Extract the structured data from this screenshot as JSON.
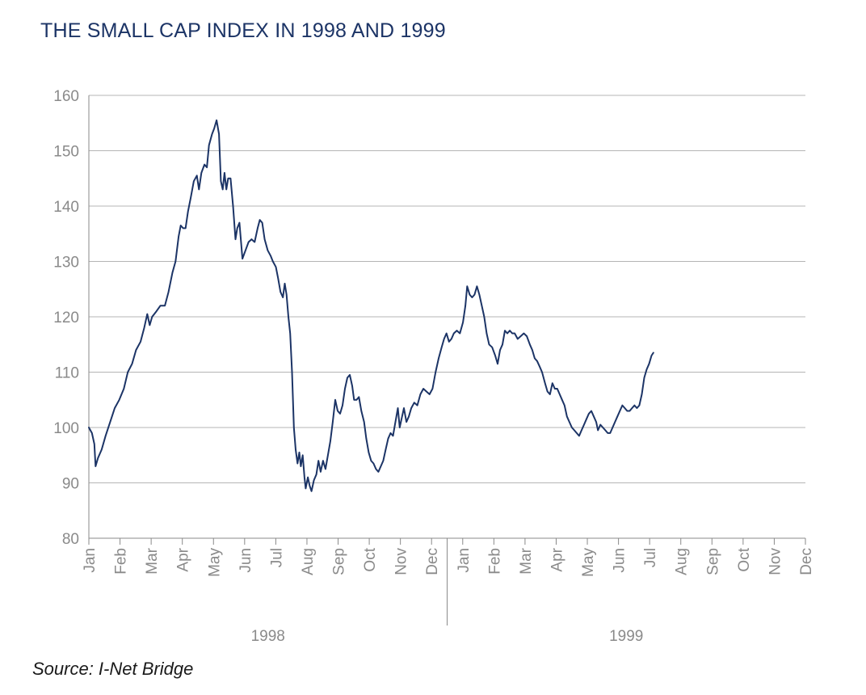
{
  "title": "THE SMALL CAP INDEX IN 1998 AND 1999",
  "source": "Source: I-Net Bridge",
  "colors": {
    "line": "#1c3466",
    "grid": "#b5b5b5",
    "axis": "#8a8a8a",
    "title": "#1c3466"
  },
  "chart_data": {
    "type": "line",
    "title": "THE SMALL CAP INDEX IN 1998 AND 1999",
    "xlabel": "",
    "ylabel": "",
    "ylim": [
      80,
      160
    ],
    "yticks": [
      80,
      90,
      100,
      110,
      120,
      130,
      140,
      150,
      160
    ],
    "grid": true,
    "legend": "none",
    "x_ticks": [
      "Jan",
      "Feb",
      "Mar",
      "Apr",
      "May",
      "Jun",
      "Jul",
      "Aug",
      "Sep",
      "Oct",
      "Nov",
      "Dec",
      "Jan",
      "Feb",
      "Mar",
      "Apr",
      "May",
      "Jun",
      "Jul",
      "Aug",
      "Sep",
      "Oct",
      "Nov",
      "Dec"
    ],
    "year_labels": [
      "1998",
      "1999"
    ],
    "series": [
      {
        "points": [
          [
            0.0,
            100
          ],
          [
            0.1,
            99
          ],
          [
            0.18,
            97
          ],
          [
            0.22,
            93
          ],
          [
            0.3,
            94.5
          ],
          [
            0.42,
            96
          ],
          [
            0.55,
            98.5
          ],
          [
            0.7,
            101
          ],
          [
            0.85,
            103.5
          ],
          [
            1.0,
            105
          ],
          [
            1.15,
            107
          ],
          [
            1.28,
            110
          ],
          [
            1.42,
            111.5
          ],
          [
            1.55,
            114
          ],
          [
            1.7,
            115.5
          ],
          [
            1.82,
            118
          ],
          [
            1.92,
            120.5
          ],
          [
            2.0,
            118.5
          ],
          [
            2.08,
            120
          ],
          [
            2.22,
            121
          ],
          [
            2.35,
            122
          ],
          [
            2.5,
            122
          ],
          [
            2.62,
            124.5
          ],
          [
            2.75,
            128
          ],
          [
            2.85,
            130
          ],
          [
            2.95,
            134.5
          ],
          [
            3.02,
            136.5
          ],
          [
            3.1,
            136
          ],
          [
            3.18,
            136
          ],
          [
            3.26,
            139
          ],
          [
            3.35,
            141.5
          ],
          [
            3.45,
            144.5
          ],
          [
            3.55,
            145.5
          ],
          [
            3.62,
            143
          ],
          [
            3.7,
            146
          ],
          [
            3.8,
            147.5
          ],
          [
            3.88,
            147
          ],
          [
            3.95,
            151
          ],
          [
            4.05,
            153
          ],
          [
            4.12,
            154
          ],
          [
            4.2,
            155.5
          ],
          [
            4.28,
            153
          ],
          [
            4.34,
            144.5
          ],
          [
            4.4,
            143
          ],
          [
            4.46,
            146
          ],
          [
            4.52,
            143
          ],
          [
            4.58,
            145
          ],
          [
            4.66,
            145
          ],
          [
            4.74,
            140
          ],
          [
            4.82,
            134
          ],
          [
            4.88,
            136
          ],
          [
            4.95,
            137
          ],
          [
            5.05,
            130.5
          ],
          [
            5.15,
            132
          ],
          [
            5.25,
            133.5
          ],
          [
            5.35,
            134
          ],
          [
            5.45,
            133.5
          ],
          [
            5.55,
            136
          ],
          [
            5.62,
            137.5
          ],
          [
            5.7,
            137
          ],
          [
            5.78,
            134
          ],
          [
            5.88,
            132
          ],
          [
            5.98,
            131
          ],
          [
            6.05,
            130
          ],
          [
            6.15,
            129
          ],
          [
            6.22,
            127
          ],
          [
            6.3,
            124.5
          ],
          [
            6.38,
            123.5
          ],
          [
            6.44,
            126
          ],
          [
            6.5,
            124
          ],
          [
            6.56,
            120
          ],
          [
            6.62,
            117
          ],
          [
            6.68,
            110
          ],
          [
            6.74,
            100
          ],
          [
            6.8,
            96
          ],
          [
            6.86,
            93.5
          ],
          [
            6.92,
            95.5
          ],
          [
            6.97,
            93
          ],
          [
            7.03,
            95
          ],
          [
            7.09,
            91
          ],
          [
            7.13,
            89
          ],
          [
            7.2,
            91
          ],
          [
            7.26,
            89.5
          ],
          [
            7.32,
            88.5
          ],
          [
            7.4,
            90.5
          ],
          [
            7.48,
            91.5
          ],
          [
            7.55,
            94
          ],
          [
            7.62,
            92
          ],
          [
            7.7,
            94
          ],
          [
            7.78,
            92.5
          ],
          [
            7.86,
            95
          ],
          [
            7.94,
            97.5
          ],
          [
            8.02,
            101
          ],
          [
            8.1,
            105
          ],
          [
            8.18,
            103
          ],
          [
            8.26,
            102.5
          ],
          [
            8.34,
            104
          ],
          [
            8.42,
            107
          ],
          [
            8.5,
            109
          ],
          [
            8.58,
            109.5
          ],
          [
            8.66,
            107.5
          ],
          [
            8.72,
            105
          ],
          [
            8.8,
            105
          ],
          [
            8.88,
            105.5
          ],
          [
            8.96,
            103
          ],
          [
            9.05,
            101
          ],
          [
            9.12,
            98
          ],
          [
            9.2,
            95.5
          ],
          [
            9.28,
            94
          ],
          [
            9.36,
            93.5
          ],
          [
            9.44,
            92.5
          ],
          [
            9.52,
            92
          ],
          [
            9.6,
            93
          ],
          [
            9.68,
            94
          ],
          [
            9.76,
            96
          ],
          [
            9.84,
            98
          ],
          [
            9.92,
            99
          ],
          [
            10.0,
            98.5
          ],
          [
            10.08,
            101
          ],
          [
            10.16,
            103.5
          ],
          [
            10.22,
            100
          ],
          [
            10.28,
            101.5
          ],
          [
            10.36,
            103.5
          ],
          [
            10.44,
            101
          ],
          [
            10.52,
            102
          ],
          [
            10.6,
            103.5
          ],
          [
            10.7,
            104.5
          ],
          [
            10.8,
            104
          ],
          [
            10.9,
            106
          ],
          [
            11.0,
            107
          ],
          [
            11.1,
            106.5
          ],
          [
            11.2,
            106
          ],
          [
            11.3,
            107
          ],
          [
            11.4,
            110
          ],
          [
            11.5,
            112.5
          ],
          [
            11.6,
            114.5
          ],
          [
            11.68,
            116
          ],
          [
            11.76,
            117
          ],
          [
            11.84,
            115.5
          ],
          [
            11.92,
            116
          ],
          [
            12.0,
            117
          ],
          [
            12.1,
            117.5
          ],
          [
            12.2,
            117
          ],
          [
            12.3,
            119
          ],
          [
            12.38,
            122
          ],
          [
            12.44,
            125.5
          ],
          [
            12.52,
            124
          ],
          [
            12.6,
            123.5
          ],
          [
            12.68,
            124
          ],
          [
            12.76,
            125.5
          ],
          [
            12.84,
            124
          ],
          [
            12.92,
            122
          ],
          [
            13.0,
            120
          ],
          [
            13.08,
            117
          ],
          [
            13.16,
            115
          ],
          [
            13.26,
            114.5
          ],
          [
            13.36,
            113
          ],
          [
            13.44,
            111.5
          ],
          [
            13.52,
            114
          ],
          [
            13.6,
            115
          ],
          [
            13.68,
            117.5
          ],
          [
            13.76,
            117
          ],
          [
            13.84,
            117.5
          ],
          [
            13.92,
            117
          ],
          [
            14.0,
            117
          ],
          [
            14.1,
            116
          ],
          [
            14.2,
            116.5
          ],
          [
            14.3,
            117
          ],
          [
            14.4,
            116.5
          ],
          [
            14.5,
            115
          ],
          [
            14.58,
            114
          ],
          [
            14.66,
            112.5
          ],
          [
            14.74,
            112
          ],
          [
            14.82,
            111
          ],
          [
            14.9,
            110
          ],
          [
            15.0,
            108
          ],
          [
            15.08,
            106.5
          ],
          [
            15.16,
            106
          ],
          [
            15.24,
            108
          ],
          [
            15.32,
            107
          ],
          [
            15.4,
            107
          ],
          [
            15.48,
            106
          ],
          [
            15.56,
            105
          ],
          [
            15.64,
            104
          ],
          [
            15.72,
            102
          ],
          [
            15.8,
            101
          ],
          [
            15.88,
            100
          ],
          [
            15.96,
            99.5
          ],
          [
            16.04,
            99
          ],
          [
            16.12,
            98.5
          ],
          [
            16.2,
            99.5
          ],
          [
            16.28,
            100.5
          ],
          [
            16.36,
            101.5
          ],
          [
            16.44,
            102.5
          ],
          [
            16.52,
            103
          ],
          [
            16.6,
            102
          ],
          [
            16.68,
            101
          ],
          [
            16.74,
            99.5
          ],
          [
            16.82,
            100.5
          ],
          [
            16.9,
            100
          ],
          [
            16.98,
            99.5
          ],
          [
            17.06,
            99
          ],
          [
            17.14,
            99
          ],
          [
            17.22,
            100
          ],
          [
            17.3,
            101
          ],
          [
            17.38,
            102
          ],
          [
            17.46,
            103
          ],
          [
            17.54,
            104
          ],
          [
            17.62,
            103.5
          ],
          [
            17.7,
            103
          ],
          [
            17.78,
            103
          ],
          [
            17.86,
            103.5
          ],
          [
            17.94,
            104
          ],
          [
            18.02,
            103.5
          ],
          [
            18.1,
            104
          ],
          [
            18.18,
            106
          ],
          [
            18.26,
            109
          ],
          [
            18.34,
            110.5
          ],
          [
            18.42,
            111.5
          ],
          [
            18.5,
            113
          ],
          [
            18.56,
            113.5
          ]
        ]
      }
    ]
  }
}
